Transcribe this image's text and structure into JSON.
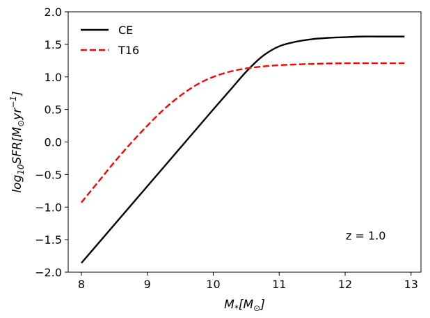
{
  "chart_data": {
    "type": "line",
    "title": "",
    "xlabel": "M*[M⊙]",
    "ylabel": "log10SFR[M⊙yr^-1]",
    "xlim": [
      7.8,
      13.15
    ],
    "ylim": [
      -2.0,
      2.0
    ],
    "x_ticks": [
      8,
      9,
      10,
      11,
      12,
      13
    ],
    "x_tick_labels": [
      "8",
      "9",
      "10",
      "11",
      "12",
      "13"
    ],
    "y_ticks": [
      -2.0,
      -1.5,
      -1.0,
      -0.5,
      0.0,
      0.5,
      1.0,
      1.5,
      2.0
    ],
    "y_tick_labels": [
      "−2.0",
      "−1.5",
      "−1.0",
      "−0.5",
      "0.0",
      "0.5",
      "1.0",
      "1.5",
      "2.0"
    ],
    "grid": false,
    "legend_position": "top-left",
    "annotation": "z = 1.0",
    "series": [
      {
        "name": "CE",
        "color": "#000000",
        "style": "solid",
        "x": [
          8.0,
          8.5,
          9.0,
          9.5,
          10.0,
          10.25,
          10.5,
          10.75,
          11.0,
          11.25,
          11.5,
          11.75,
          12.0,
          12.25,
          12.5,
          12.75,
          12.9
        ],
        "y": [
          -1.86,
          -1.27,
          -0.68,
          -0.09,
          0.5,
          0.79,
          1.08,
          1.32,
          1.47,
          1.54,
          1.58,
          1.6,
          1.61,
          1.62,
          1.62,
          1.62,
          1.62
        ]
      },
      {
        "name": "T16",
        "color": "#ff0000",
        "style": "dashed",
        "x": [
          8.0,
          8.25,
          8.5,
          8.75,
          9.0,
          9.25,
          9.5,
          9.75,
          10.0,
          10.25,
          10.5,
          10.75,
          11.0,
          11.5,
          12.0,
          12.5,
          12.9
        ],
        "y": [
          -0.93,
          -0.62,
          -0.31,
          -0.02,
          0.25,
          0.5,
          0.71,
          0.88,
          1.0,
          1.08,
          1.13,
          1.16,
          1.18,
          1.2,
          1.21,
          1.21,
          1.21
        ]
      }
    ]
  }
}
